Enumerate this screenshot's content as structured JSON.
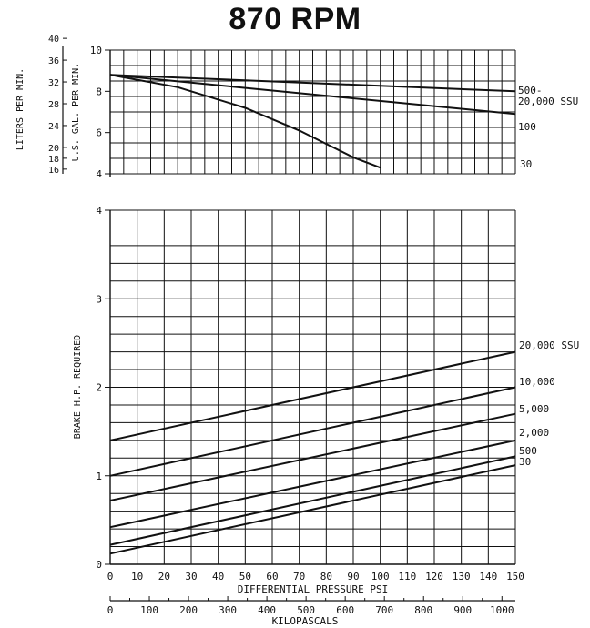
{
  "title": "870 RPM",
  "chart_data": [
    {
      "type": "line",
      "name": "flow",
      "xlabel": "DIFFERENTIAL PRESSURE PSI",
      "ylabel": "U.S. GAL. PER MIN.",
      "ylabel_secondary": "LITERS PER MIN.",
      "xlim": [
        0,
        150
      ],
      "ylim": [
        4,
        10
      ],
      "x_ticks": [
        0,
        10,
        20,
        30,
        40,
        50,
        60,
        70,
        80,
        90,
        100,
        110,
        120,
        130,
        140,
        150
      ],
      "y_ticks": [
        4,
        6,
        8,
        10
      ],
      "y_ticks_secondary": [
        16,
        18,
        20,
        24,
        28,
        32,
        36,
        40
      ],
      "grid": true,
      "series": [
        {
          "name": "500-\n20,000 SSU",
          "x": [
            0,
            150
          ],
          "y": [
            8.8,
            8.0
          ]
        },
        {
          "name": "100",
          "x": [
            0,
            150
          ],
          "y": [
            8.8,
            6.9
          ]
        },
        {
          "name": "30",
          "x": [
            0,
            25,
            50,
            70,
            90,
            100
          ],
          "y": [
            8.8,
            8.2,
            7.2,
            6.1,
            4.8,
            4.3
          ]
        }
      ]
    },
    {
      "type": "line",
      "name": "power",
      "xlabel": "DIFFERENTIAL PRESSURE PSI",
      "xlabel_secondary": "KILOPASCALS",
      "ylabel": "BRAKE H.P. REQUIRED",
      "xlim": [
        0,
        150
      ],
      "ylim": [
        0,
        4
      ],
      "x_ticks": [
        0,
        10,
        20,
        30,
        40,
        50,
        60,
        70,
        80,
        90,
        100,
        110,
        120,
        130,
        140,
        150
      ],
      "x_ticks_secondary": [
        0,
        100,
        200,
        300,
        400,
        500,
        600,
        700,
        800,
        900,
        1000
      ],
      "y_ticks": [
        0,
        1,
        2,
        3,
        4
      ],
      "grid": true,
      "series": [
        {
          "name": "20,000 SSU",
          "x": [
            0,
            150
          ],
          "y": [
            1.4,
            2.4
          ]
        },
        {
          "name": "10,000",
          "x": [
            0,
            150
          ],
          "y": [
            1.0,
            2.0
          ]
        },
        {
          "name": "5,000",
          "x": [
            0,
            150
          ],
          "y": [
            0.72,
            1.7
          ]
        },
        {
          "name": "2,000",
          "x": [
            0,
            150
          ],
          "y": [
            0.42,
            1.4
          ]
        },
        {
          "name": "500",
          "x": [
            0,
            150
          ],
          "y": [
            0.22,
            1.22
          ]
        },
        {
          "name": "30",
          "x": [
            0,
            150
          ],
          "y": [
            0.12,
            1.12
          ]
        }
      ]
    }
  ]
}
